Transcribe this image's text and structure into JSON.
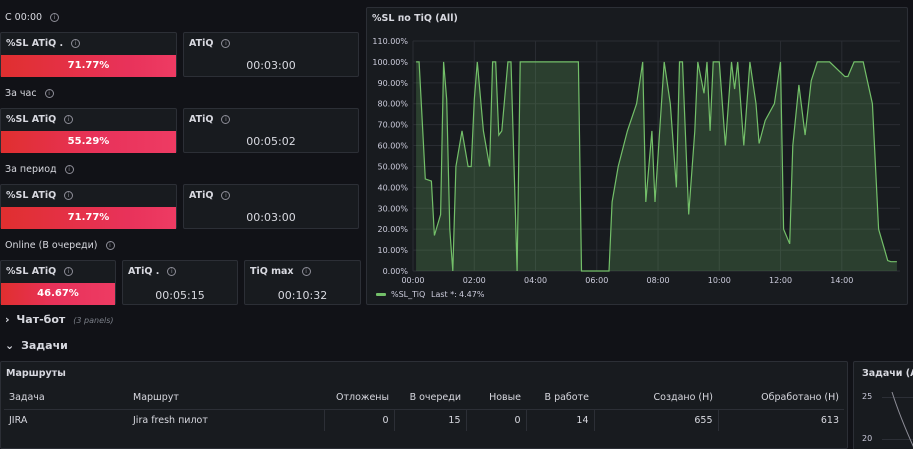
{
  "stats": {
    "row1": {
      "label": "С 00:00",
      "sl_title": "%SL ATiQ .",
      "sl_value": "71.77%",
      "sl_fraction": 0.7177,
      "atiq_title": "ATiQ",
      "atiq_value": "00:03:00"
    },
    "row2": {
      "label": "За час",
      "sl_title": "%SL ATiQ",
      "sl_value": "55.29%",
      "sl_fraction": 0.5529,
      "atiq_title": "ATiQ",
      "atiq_value": "00:05:02"
    },
    "row3": {
      "label": "За период",
      "sl_title": "%SL ATiQ",
      "sl_value": "71.77%",
      "sl_fraction": 0.7177,
      "atiq_title": "ATiQ",
      "atiq_value": "00:03:00"
    },
    "row4": {
      "label": "Online (В очереди)",
      "sl_title": "%SL ATiQ",
      "sl_value": "46.67%",
      "sl_fraction": 0.4667,
      "atiq_title": "ATiQ .",
      "atiq_value": "00:05:15",
      "tiq_title": "TiQ max",
      "tiq_value": "00:10:32"
    }
  },
  "info_glyph": "i",
  "chart_panel": {
    "title": "%SL по TiQ (All)"
  },
  "chart_data": {
    "type": "area",
    "title": "%SL по TiQ (All)",
    "ylim": [
      0,
      110
    ],
    "yticks": [
      "0.00%",
      "10.00%",
      "20.00%",
      "30.00%",
      "40.00%",
      "50.00%",
      "60.00%",
      "70.00%",
      "80.00%",
      "90.00%",
      "100.00%",
      "110.00%"
    ],
    "xlim": [
      0,
      15.9
    ],
    "xticks": [
      {
        "h": 0,
        "label": "00:00"
      },
      {
        "h": 2,
        "label": "02:00"
      },
      {
        "h": 4,
        "label": "04:00"
      },
      {
        "h": 6,
        "label": "06:00"
      },
      {
        "h": 8,
        "label": "08:00"
      },
      {
        "h": 10,
        "label": "10:00"
      },
      {
        "h": 12,
        "label": "12:00"
      },
      {
        "h": 14,
        "label": "14:00"
      }
    ],
    "grid": true,
    "legend_position": "bottom-left",
    "color": "#73bf69",
    "series": [
      {
        "name": "%SL_TiQ",
        "x": [
          0.1,
          0.2,
          0.4,
          0.6,
          0.7,
          0.9,
          1.0,
          1.1,
          1.2,
          1.3,
          1.4,
          1.6,
          1.8,
          1.9,
          2.0,
          2.1,
          2.3,
          2.5,
          2.6,
          2.7,
          2.8,
          2.9,
          3.1,
          3.2,
          3.4,
          3.5,
          3.6,
          3.9,
          4.0,
          4.1,
          4.2,
          4.5,
          5.4,
          5.5,
          5.6,
          6.4,
          6.5,
          6.7,
          7.0,
          7.3,
          7.5,
          7.6,
          7.8,
          7.9,
          8.2,
          8.4,
          8.6,
          8.7,
          8.8,
          9.0,
          9.2,
          9.3,
          9.5,
          9.6,
          9.7,
          9.8,
          10.0,
          10.2,
          10.4,
          10.5,
          10.6,
          10.8,
          11.0,
          11.2,
          11.3,
          11.5,
          11.8,
          12.0,
          12.1,
          12.3,
          12.4,
          12.6,
          12.8,
          13.0,
          13.2,
          13.3,
          13.5,
          13.6,
          14.1,
          14.2,
          14.4,
          14.5,
          14.6,
          14.7,
          15.0,
          15.2,
          15.4,
          15.5,
          15.6,
          15.8
        ],
        "values": [
          100,
          100,
          44,
          43,
          17,
          27,
          100,
          82,
          20,
          0,
          50,
          67,
          50,
          50,
          82,
          100,
          67,
          50,
          100,
          100,
          65,
          67,
          100,
          100,
          0,
          100,
          100,
          100,
          100,
          100,
          100,
          100,
          100,
          0,
          0,
          0,
          33,
          50,
          67,
          80,
          100,
          33,
          67,
          33,
          100,
          80,
          40,
          100,
          100,
          27,
          67,
          100,
          85,
          100,
          67,
          100,
          100,
          60,
          100,
          87,
          100,
          60,
          100,
          80,
          61,
          72,
          80,
          100,
          20,
          13,
          60,
          89,
          65,
          91,
          100,
          100,
          100,
          100,
          93,
          93,
          100,
          100,
          100,
          100,
          80,
          20,
          10,
          5,
          4.47,
          4.47
        ]
      }
    ],
    "legend": {
      "series_name": "%SL_TiQ",
      "last_label": "Last *:",
      "last_value": "4.47%"
    }
  },
  "chatbot_row": {
    "arrow": "›",
    "title": "Чат-бот",
    "note": "(3 panels)"
  },
  "tasks_row": {
    "arrow": "⌄",
    "title": "Задачи"
  },
  "routes_table": {
    "title": "Маршруты",
    "columns": [
      "Задача",
      "Маршрут",
      "Отложены",
      "В очереди",
      "Новые",
      "В работе",
      "Создано (Н)",
      "Обработано (Н)"
    ],
    "rows": [
      [
        "JIRA",
        "Jira fresh пилот",
        "0",
        "15",
        "0",
        "14",
        "655",
        "613"
      ]
    ]
  },
  "side_panel": {
    "title": "Задачи (All)",
    "yticks": [
      "25",
      "20"
    ]
  }
}
